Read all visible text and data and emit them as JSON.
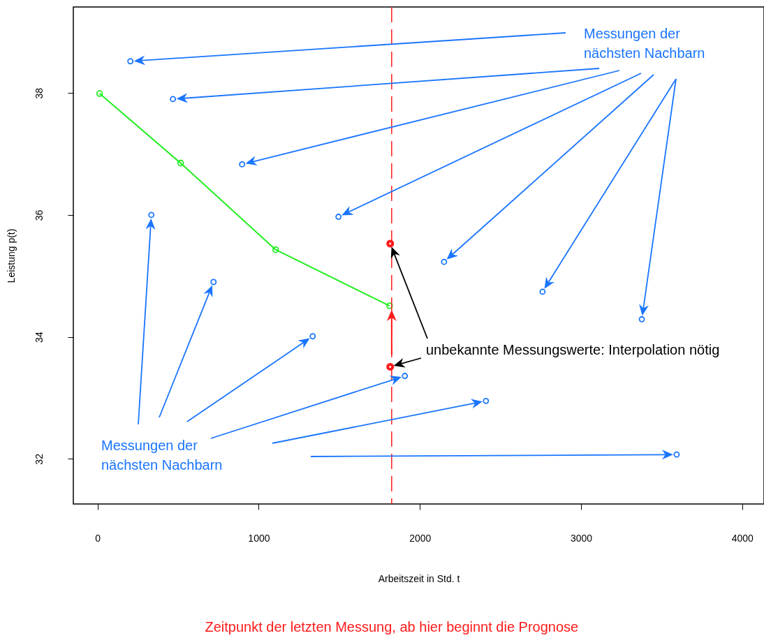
{
  "chart_data": {
    "type": "scatter",
    "xlabel": "Arbeitszeit in Std. t",
    "ylabel": "Leistung p(t)",
    "xlim": [
      -150,
      4135
    ],
    "ylim": [
      31.26,
      39.41
    ],
    "xticks": [
      0,
      1000,
      2000,
      3000,
      4000
    ],
    "yticks": [
      32,
      34,
      36,
      38
    ],
    "grid": false,
    "marker": "circle",
    "annotations": [
      "Messungen der nächsten Nachbarn",
      "Messungen der nächsten Nachbarn",
      {
        "text": "unbekannte Messungswerte: Interpolation nötig",
        "x": 1816,
        "y": 33.51
      }
    ],
    "series": [
      {
        "color": "#1a75ff",
        "x": [
          204,
          468,
          897,
          1495,
          2150,
          2761,
          3377
        ],
        "values": [
          38.52,
          37.9,
          36.83,
          35.97,
          35.23,
          34.74,
          34.29
        ]
      },
      {
        "color": "#1a75ff",
        "x": [
          334,
          720,
          1335,
          1907,
          2410,
          3593
        ],
        "values": [
          36.0,
          34.9,
          34.01,
          33.36,
          32.95,
          32.07
        ]
      },
      {
        "type": "line",
        "color": "#22ee22",
        "x": [
          13,
          516,
          1105,
          1812
        ],
        "values": [
          37.99,
          36.85,
          35.43,
          34.51
        ]
      },
      {
        "color": "#ff1a1a",
        "x": [
          1816,
          1816
        ],
        "values": [
          35.53,
          33.51
        ]
      }
    ],
    "ref_lines": [
      {
        "axis": "x",
        "value": 1825,
        "label": "Zeitpunkt der letzten Messung, ab hier beginnt die Prognose",
        "color": "#ff1a1a",
        "line_style": "dashed"
      }
    ]
  }
}
